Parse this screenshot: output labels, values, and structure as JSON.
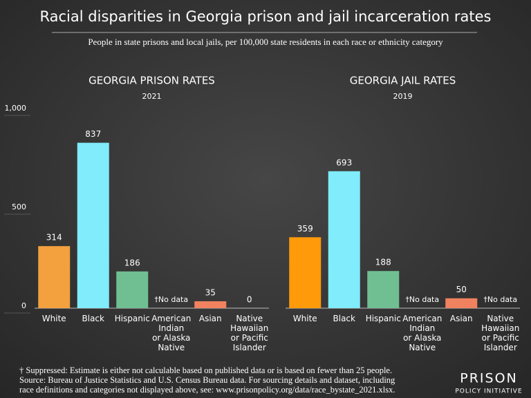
{
  "header": {
    "title": "Racial disparities in Georgia prison and jail incarceration rates",
    "subtitle": "People in state prisons and local jails, per 100,000 state residents in each race or ethnicity category"
  },
  "chart_data": [
    {
      "type": "bar",
      "title": "GEORGIA PRISON RATES",
      "subtitle": "2021",
      "categories": [
        "White",
        "Black",
        "Hispanic",
        "American\nIndian\nor Alaska\nNative",
        "Asian",
        "Native\nHawaiian\nor Pacific\nIslander"
      ],
      "values": [
        314,
        837,
        186,
        null,
        35,
        0
      ],
      "value_labels": [
        "314",
        "837",
        "186",
        "†No data",
        "35",
        "0"
      ],
      "colors": [
        "#f3a03f",
        "#80ecfc",
        "#6fbf92",
        "#6fbf92",
        "#f0825f",
        "#f0825f"
      ],
      "ylim": [
        0,
        1000
      ],
      "yticks": [
        0,
        500,
        {
          "value": 1000,
          "label": "1,000"
        }
      ]
    },
    {
      "type": "bar",
      "title": "GEORGIA JAIL RATES",
      "subtitle": "2019",
      "categories": [
        "White",
        "Black",
        "Hispanic",
        "American\nIndian\nor Alaska\nNative",
        "Asian",
        "Native\nHawaiian\nor Pacific\nIslander"
      ],
      "values": [
        359,
        693,
        188,
        null,
        50,
        null
      ],
      "value_labels": [
        "359",
        "693",
        "188",
        "†No data",
        "50",
        "†No data"
      ],
      "colors": [
        "#ff9a0a",
        "#80ecfc",
        "#6fbf92",
        "#6fbf92",
        "#f0825f",
        "#f0825f"
      ],
      "ylim": [
        0,
        1000
      ]
    }
  ],
  "footer": {
    "notes": [
      "† Suppressed: Estimate is either not calculable based on published data or is based on fewer than 25 people.",
      "Source: Bureau of Justice Statistics and U.S. Census Bureau data. For sourcing details and dataset, including",
      "race definitions and categories not displayed above, see: www.prisonpolicy.org/data/race_bystate_2021.xlsx."
    ],
    "logo": [
      "PRISON",
      "POLICY INITIATIVE"
    ]
  }
}
